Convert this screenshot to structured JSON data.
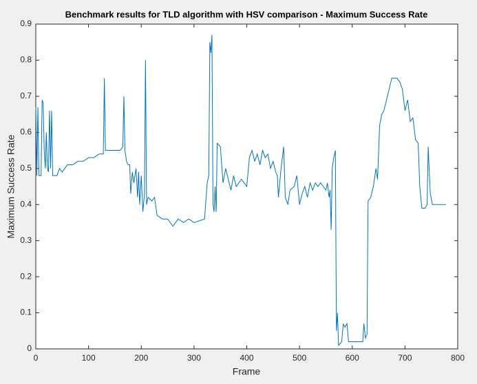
{
  "chart_data": {
    "type": "line",
    "title": "Benchmark results for TLD algorithm with HSV comparison - Maximum Success Rate",
    "x_label": "Frame",
    "y_label": "Maximum Success Rate",
    "xlim": [
      0,
      800
    ],
    "xticks": [
      0,
      100,
      200,
      300,
      400,
      500,
      600,
      700,
      800
    ],
    "ylim": [
      0,
      0.9
    ],
    "yticks": [
      0,
      0.1,
      0.2,
      0.3,
      0.4,
      0.5,
      0.6,
      0.7,
      0.8,
      0.9
    ],
    "grid": false,
    "series": [
      {
        "name": "Maximum Success Rate",
        "color": "#0072bd",
        "x": [
          0,
          2,
          4,
          6,
          10,
          12,
          14,
          16,
          18,
          20,
          22,
          24,
          26,
          28,
          30,
          32,
          40,
          45,
          50,
          55,
          60,
          70,
          80,
          90,
          100,
          110,
          120,
          128,
          130,
          132,
          140,
          150,
          160,
          165,
          167,
          169,
          172,
          175,
          178,
          180,
          183,
          186,
          190,
          193,
          195,
          197,
          200,
          203,
          206,
          208,
          210,
          213,
          220,
          225,
          230,
          240,
          250,
          260,
          270,
          280,
          290,
          300,
          320,
          325,
          328,
          330,
          332,
          334,
          336,
          338,
          340,
          342,
          344,
          350,
          355,
          360,
          365,
          370,
          375,
          380,
          390,
          400,
          405,
          410,
          415,
          420,
          425,
          430,
          435,
          440,
          445,
          450,
          455,
          458,
          460,
          465,
          470,
          473,
          478,
          482,
          490,
          495,
          500,
          505,
          510,
          515,
          520,
          525,
          530,
          535,
          540,
          545,
          550,
          553,
          556,
          558,
          560,
          562,
          565,
          568,
          570,
          572,
          574,
          580,
          583,
          586,
          590,
          593,
          600,
          610,
          620,
          622,
          625,
          628,
          630,
          635,
          640,
          645,
          648,
          652,
          656,
          660,
          665,
          670,
          675,
          685,
          690,
          695,
          700,
          705,
          710,
          715,
          720,
          725,
          728,
          732,
          738,
          742,
          744,
          748,
          752,
          760,
          770,
          778
        ],
        "values": [
          0.67,
          0.48,
          0.67,
          0.48,
          0.48,
          0.69,
          0.68,
          0.55,
          0.5,
          0.6,
          0.5,
          0.49,
          0.66,
          0.5,
          0.66,
          0.48,
          0.48,
          0.5,
          0.49,
          0.5,
          0.51,
          0.51,
          0.52,
          0.52,
          0.53,
          0.53,
          0.54,
          0.54,
          0.75,
          0.55,
          0.55,
          0.55,
          0.55,
          0.56,
          0.7,
          0.55,
          0.52,
          0.51,
          0.51,
          0.43,
          0.49,
          0.46,
          0.5,
          0.42,
          0.49,
          0.4,
          0.48,
          0.38,
          0.43,
          0.8,
          0.4,
          0.42,
          0.41,
          0.42,
          0.37,
          0.36,
          0.36,
          0.34,
          0.36,
          0.35,
          0.36,
          0.35,
          0.36,
          0.46,
          0.48,
          0.85,
          0.82,
          0.87,
          0.4,
          0.38,
          0.45,
          0.38,
          0.57,
          0.56,
          0.46,
          0.5,
          0.47,
          0.44,
          0.48,
          0.45,
          0.47,
          0.45,
          0.53,
          0.55,
          0.52,
          0.54,
          0.51,
          0.55,
          0.53,
          0.54,
          0.5,
          0.52,
          0.49,
          0.48,
          0.42,
          0.5,
          0.56,
          0.42,
          0.4,
          0.44,
          0.45,
          0.48,
          0.4,
          0.43,
          0.45,
          0.42,
          0.46,
          0.44,
          0.46,
          0.45,
          0.46,
          0.45,
          0.44,
          0.46,
          0.42,
          0.44,
          0.33,
          0.5,
          0.53,
          0.55,
          0.05,
          0.1,
          0.01,
          0.02,
          0.07,
          0.06,
          0.07,
          0.02,
          0.02,
          0.02,
          0.02,
          0.07,
          0.03,
          0.04,
          0.41,
          0.42,
          0.45,
          0.5,
          0.47,
          0.62,
          0.65,
          0.66,
          0.69,
          0.72,
          0.75,
          0.75,
          0.74,
          0.72,
          0.66,
          0.69,
          0.63,
          0.64,
          0.58,
          0.57,
          0.45,
          0.39,
          0.39,
          0.4,
          0.56,
          0.43,
          0.4,
          0.4,
          0.4,
          0.4
        ]
      }
    ]
  }
}
